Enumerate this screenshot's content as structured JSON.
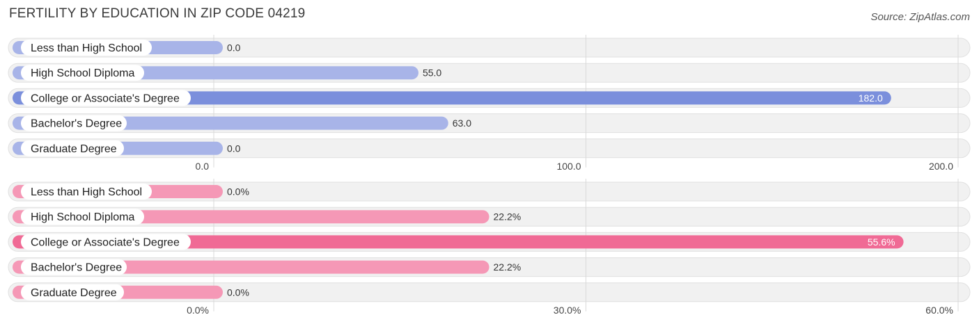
{
  "title": "FERTILITY BY EDUCATION IN ZIP CODE 04219",
  "source": "Source: ZipAtlas.com",
  "chart_data": [
    {
      "type": "bar",
      "orientation": "horizontal",
      "categories": [
        "Less than High School",
        "High School Diploma",
        "College or Associate's Degree",
        "Bachelor's Degree",
        "Graduate Degree"
      ],
      "values": [
        0.0,
        55.0,
        182.0,
        63.0,
        0.0
      ],
      "value_labels": [
        "0.0",
        "55.0",
        "182.0",
        "63.0",
        "0.0"
      ],
      "xlim": [
        0,
        200
      ],
      "ticks": [
        0,
        100,
        200
      ],
      "tick_labels": [
        "0.0",
        "100.0",
        "200.0"
      ],
      "colors": {
        "normal": "#a8b4e8",
        "highlight": "#7b8fdc"
      }
    },
    {
      "type": "bar",
      "orientation": "horizontal",
      "categories": [
        "Less than High School",
        "High School Diploma",
        "College or Associate's Degree",
        "Bachelor's Degree",
        "Graduate Degree"
      ],
      "values": [
        0.0,
        22.2,
        55.6,
        22.2,
        0.0
      ],
      "value_labels": [
        "0.0%",
        "22.2%",
        "55.6%",
        "22.2%",
        "0.0%"
      ],
      "xlim": [
        0,
        60
      ],
      "ticks": [
        0,
        30,
        60
      ],
      "tick_labels": [
        "0.0%",
        "30.0%",
        "60.0%"
      ],
      "colors": {
        "normal": "#f598b6",
        "highlight": "#f06a95"
      }
    }
  ]
}
